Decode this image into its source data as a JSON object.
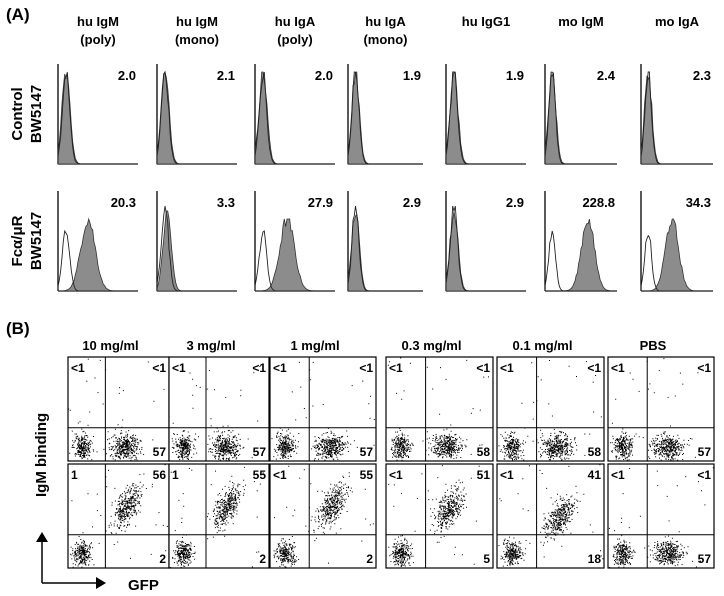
{
  "panel_a": {
    "label": "(A)",
    "columns": [
      {
        "line1": "hu IgM",
        "line2": "(poly)"
      },
      {
        "line1": "hu IgM",
        "line2": "(mono)"
      },
      {
        "line1": "hu IgA",
        "line2": "(poly)"
      },
      {
        "line1": "hu IgA",
        "line2": "(mono)"
      },
      {
        "line1": "hu IgG1",
        "line2": ""
      },
      {
        "line1": "mo IgM",
        "line2": ""
      },
      {
        "line1": "mo IgA",
        "line2": ""
      }
    ],
    "rows": [
      {
        "line1": "Control",
        "line2": "BW5147",
        "values": [
          "2.0",
          "2.1",
          "2.0",
          "1.9",
          "1.9",
          "2.4",
          "2.3"
        ],
        "shift": [
          0,
          0,
          0,
          0,
          0,
          0,
          0
        ]
      },
      {
        "line1": "Fcα/μR",
        "line2": "BW5147",
        "values": [
          "20.3",
          "3.3",
          "27.9",
          "2.9",
          "2.9",
          "228.8",
          "34.3"
        ],
        "shift": [
          0.5,
          0.05,
          0.55,
          0,
          0,
          0.9,
          0.6
        ]
      }
    ]
  },
  "panel_b": {
    "label": "(B)",
    "columns": [
      "10 mg/ml",
      "3 mg/ml",
      "1 mg/ml",
      "0.3 mg/ml",
      "0.1 mg/ml",
      "PBS"
    ],
    "y_axis_label": "IgM binding",
    "x_axis_label": "GFP",
    "rows": [
      {
        "quadrants": [
          {
            "ul": "<1",
            "ur": "<1",
            "lr": "57"
          },
          {
            "ul": "<1",
            "ur": "<1",
            "lr": "57"
          },
          {
            "ul": "<1",
            "ur": "<1",
            "lr": "57"
          },
          {
            "ul": "<1",
            "ur": "<1",
            "lr": "58"
          },
          {
            "ul": "<1",
            "ur": "<1",
            "lr": "58"
          },
          {
            "ul": "<1",
            "ur": "<1",
            "lr": "57"
          }
        ],
        "binding": [
          0,
          0,
          0,
          0,
          0,
          0
        ]
      },
      {
        "quadrants": [
          {
            "ul": "1",
            "ur": "56",
            "lr": "2"
          },
          {
            "ul": "1",
            "ur": "55",
            "lr": "2"
          },
          {
            "ul": "<1",
            "ur": "55",
            "lr": "2"
          },
          {
            "ul": "<1",
            "ur": "51",
            "lr": "5"
          },
          {
            "ul": "<1",
            "ur": "41",
            "lr": "18"
          },
          {
            "ul": "<1",
            "ur": "<1",
            "lr": "57"
          }
        ],
        "binding": [
          1,
          1,
          1,
          0.92,
          0.75,
          0
        ]
      }
    ]
  }
}
